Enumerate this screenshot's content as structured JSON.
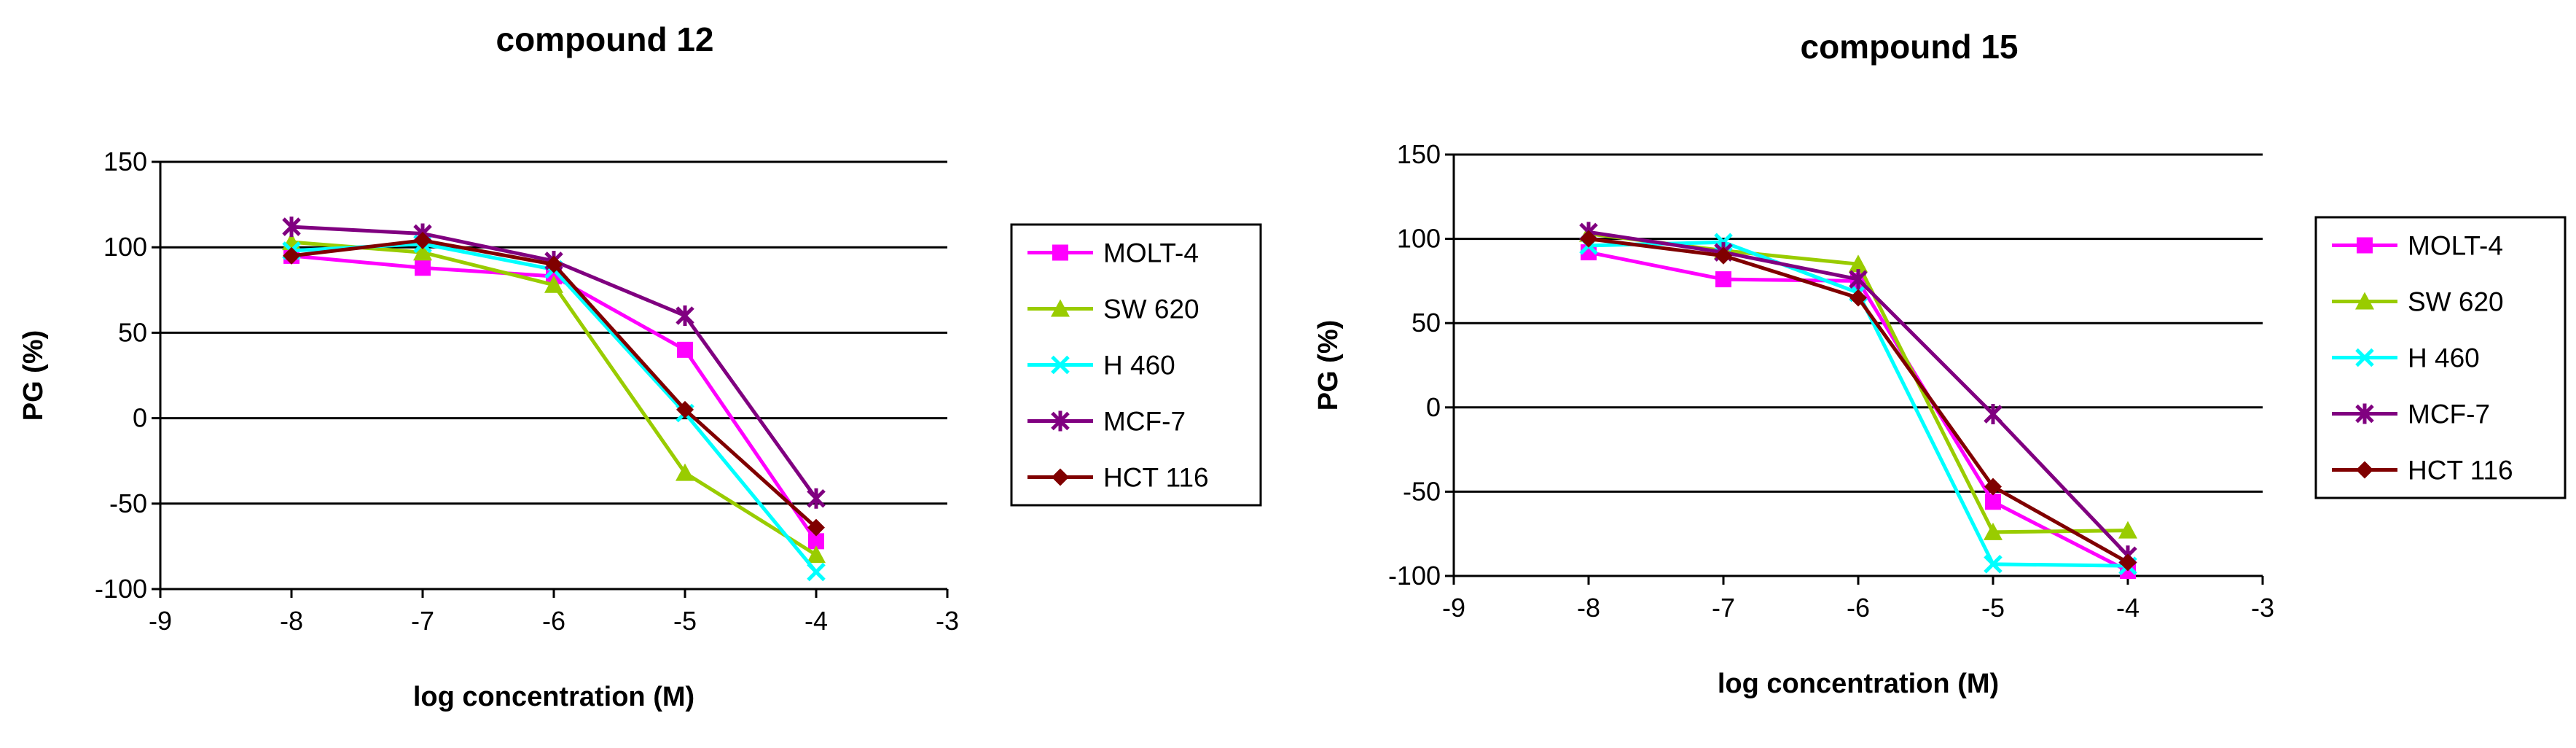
{
  "chart_data": [
    {
      "type": "line",
      "title": "compound 12",
      "xlabel": "log concentration (M)",
      "ylabel": "PG (%)",
      "xlim": [
        -9,
        -3
      ],
      "ylim": [
        -100,
        150
      ],
      "x_ticks": [
        -9,
        -8,
        -7,
        -6,
        -5,
        -4,
        -3
      ],
      "y_ticks": [
        -100,
        -50,
        0,
        50,
        100,
        150
      ],
      "grid": "horizontal",
      "legend_position": "right",
      "x": [
        -8,
        -7,
        -6,
        -5,
        -4
      ],
      "series": [
        {
          "name": "MOLT-4",
          "values": [
            95,
            88,
            83,
            40,
            -72
          ],
          "color": "#FF00FF",
          "marker": "square"
        },
        {
          "name": "SW 620",
          "values": [
            103,
            97,
            78,
            -32,
            -80
          ],
          "color": "#99CC00",
          "marker": "triangle"
        },
        {
          "name": "H 460",
          "values": [
            98,
            102,
            87,
            3,
            -90
          ],
          "color": "#00FFFF",
          "marker": "x"
        },
        {
          "name": "MCF-7",
          "values": [
            112,
            108,
            92,
            60,
            -47
          ],
          "color": "#800080",
          "marker": "star"
        },
        {
          "name": "HCT 116",
          "values": [
            95,
            104,
            90,
            5,
            -64
          ],
          "color": "#800000",
          "marker": "diamond"
        }
      ]
    },
    {
      "type": "line",
      "title": "compound 15",
      "xlabel": "log concentration (M)",
      "ylabel": "PG (%)",
      "xlim": [
        -9,
        -3
      ],
      "ylim": [
        -100,
        150
      ],
      "x_ticks": [
        -9,
        -8,
        -7,
        -6,
        -5,
        -4,
        -3
      ],
      "y_ticks": [
        -100,
        -50,
        0,
        50,
        100,
        150
      ],
      "grid": "horizontal",
      "legend_position": "right",
      "x": [
        -8,
        -7,
        -6,
        -5,
        -4
      ],
      "series": [
        {
          "name": "MOLT-4",
          "values": [
            92,
            76,
            75,
            -56,
            -97
          ],
          "color": "#FF00FF",
          "marker": "square"
        },
        {
          "name": "SW 620",
          "values": [
            103,
            93,
            85,
            -74,
            -73
          ],
          "color": "#99CC00",
          "marker": "triangle"
        },
        {
          "name": "H 460",
          "values": [
            96,
            98,
            68,
            -93,
            -94
          ],
          "color": "#00FFFF",
          "marker": "x"
        },
        {
          "name": "MCF-7",
          "values": [
            104,
            92,
            76,
            -4,
            -88
          ],
          "color": "#800080",
          "marker": "star"
        },
        {
          "name": "HCT 116",
          "values": [
            100,
            90,
            65,
            -47,
            -92
          ],
          "color": "#800000",
          "marker": "diamond"
        }
      ]
    }
  ]
}
